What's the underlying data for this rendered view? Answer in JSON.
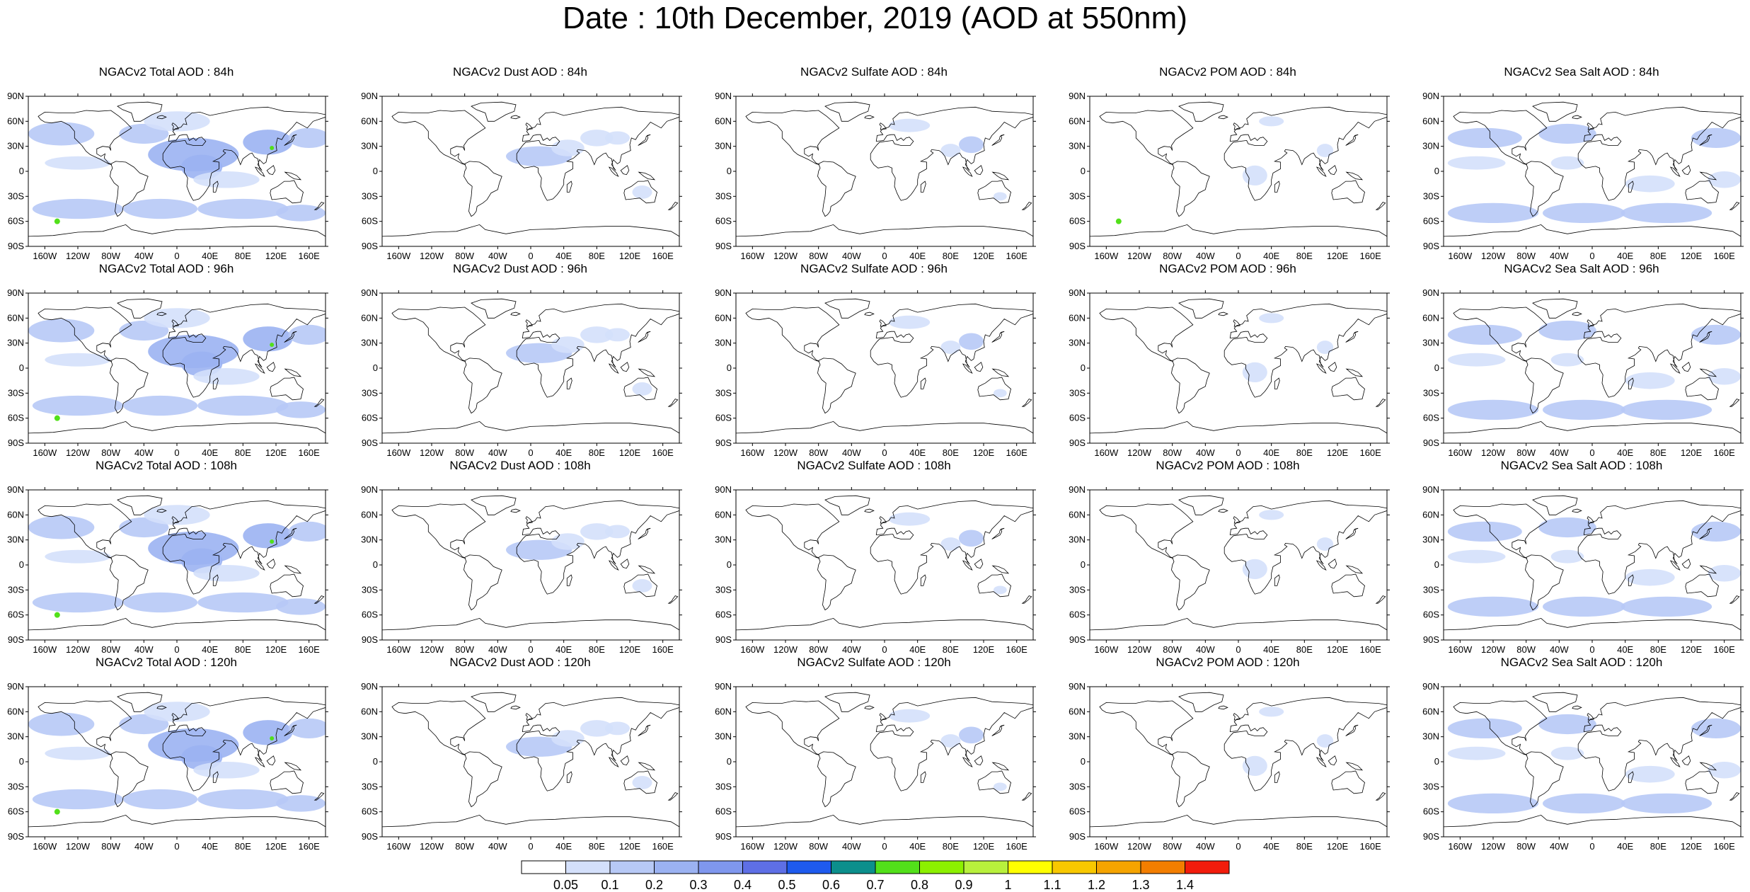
{
  "title": "Date : 10th December, 2019 (AOD at 550nm)",
  "panels": [
    [
      {
        "title": "NGACv2 Total AOD : 84h",
        "species": "total"
      },
      {
        "title": "NGACv2 Dust AOD : 84h",
        "species": "dust"
      },
      {
        "title": "NGACv2 Sulfate AOD : 84h",
        "species": "sulfate"
      },
      {
        "title": "NGACv2 POM AOD : 84h",
        "species": "pom"
      },
      {
        "title": "NGACv2 Sea Salt AOD : 84h",
        "species": "seasalt"
      }
    ],
    [
      {
        "title": "NGACv2 Total AOD : 96h",
        "species": "total"
      },
      {
        "title": "NGACv2 Dust AOD : 96h",
        "species": "dust"
      },
      {
        "title": "NGACv2 Sulfate AOD : 96h",
        "species": "sulfate"
      },
      {
        "title": "NGACv2 POM AOD : 96h",
        "species": "pom"
      },
      {
        "title": "NGACv2 Sea Salt AOD : 96h",
        "species": "seasalt"
      }
    ],
    [
      {
        "title": "NGACv2 Total AOD : 108h",
        "species": "total"
      },
      {
        "title": "NGACv2 Dust AOD : 108h",
        "species": "dust"
      },
      {
        "title": "NGACv2 Sulfate AOD : 108h",
        "species": "sulfate"
      },
      {
        "title": "NGACv2 POM AOD : 108h",
        "species": "pom"
      },
      {
        "title": "NGACv2 Sea Salt AOD : 108h",
        "species": "seasalt"
      }
    ],
    [
      {
        "title": "NGACv2 Total AOD : 120h",
        "species": "total"
      },
      {
        "title": "NGACv2 Dust AOD : 120h",
        "species": "dust"
      },
      {
        "title": "NGACv2 Sulfate AOD : 120h",
        "species": "sulfate"
      },
      {
        "title": "NGACv2 POM AOD : 120h",
        "species": "pom"
      },
      {
        "title": "NGACv2 Sea Salt  AOD : 120h",
        "species": "seasalt"
      }
    ]
  ],
  "lat_ticks": [
    "90N",
    "60N",
    "30N",
    "0",
    "30S",
    "60S",
    "90S"
  ],
  "lon_ticks": [
    "160W",
    "120W",
    "80W",
    "40W",
    "0",
    "40E",
    "80E",
    "120E",
    "160E"
  ],
  "colorbar": {
    "labels": [
      "0.05",
      "0.1",
      "0.2",
      "0.3",
      "0.4",
      "0.5",
      "0.6",
      "0.7",
      "0.8",
      "0.9",
      "1",
      "1.1",
      "1.2",
      "1.3",
      "1.4"
    ],
    "colors": [
      "#ffffff",
      "#d4e0fb",
      "#b7c9f6",
      "#9bb2f2",
      "#7f97ee",
      "#5e6fe6",
      "#1e5aee",
      "#0c8f8c",
      "#52e01a",
      "#8cf000",
      "#b8f03c",
      "#ffff00",
      "#f8c800",
      "#f5a400",
      "#f37e00",
      "#f21c0c"
    ]
  },
  "colors": {
    "land_outline": "#000000",
    "light_fill": "#d4e0fb",
    "mid_fill": "#b7c9f6",
    "dark_fill": "#9bb2f2",
    "hotspot": "#52e01a"
  }
}
